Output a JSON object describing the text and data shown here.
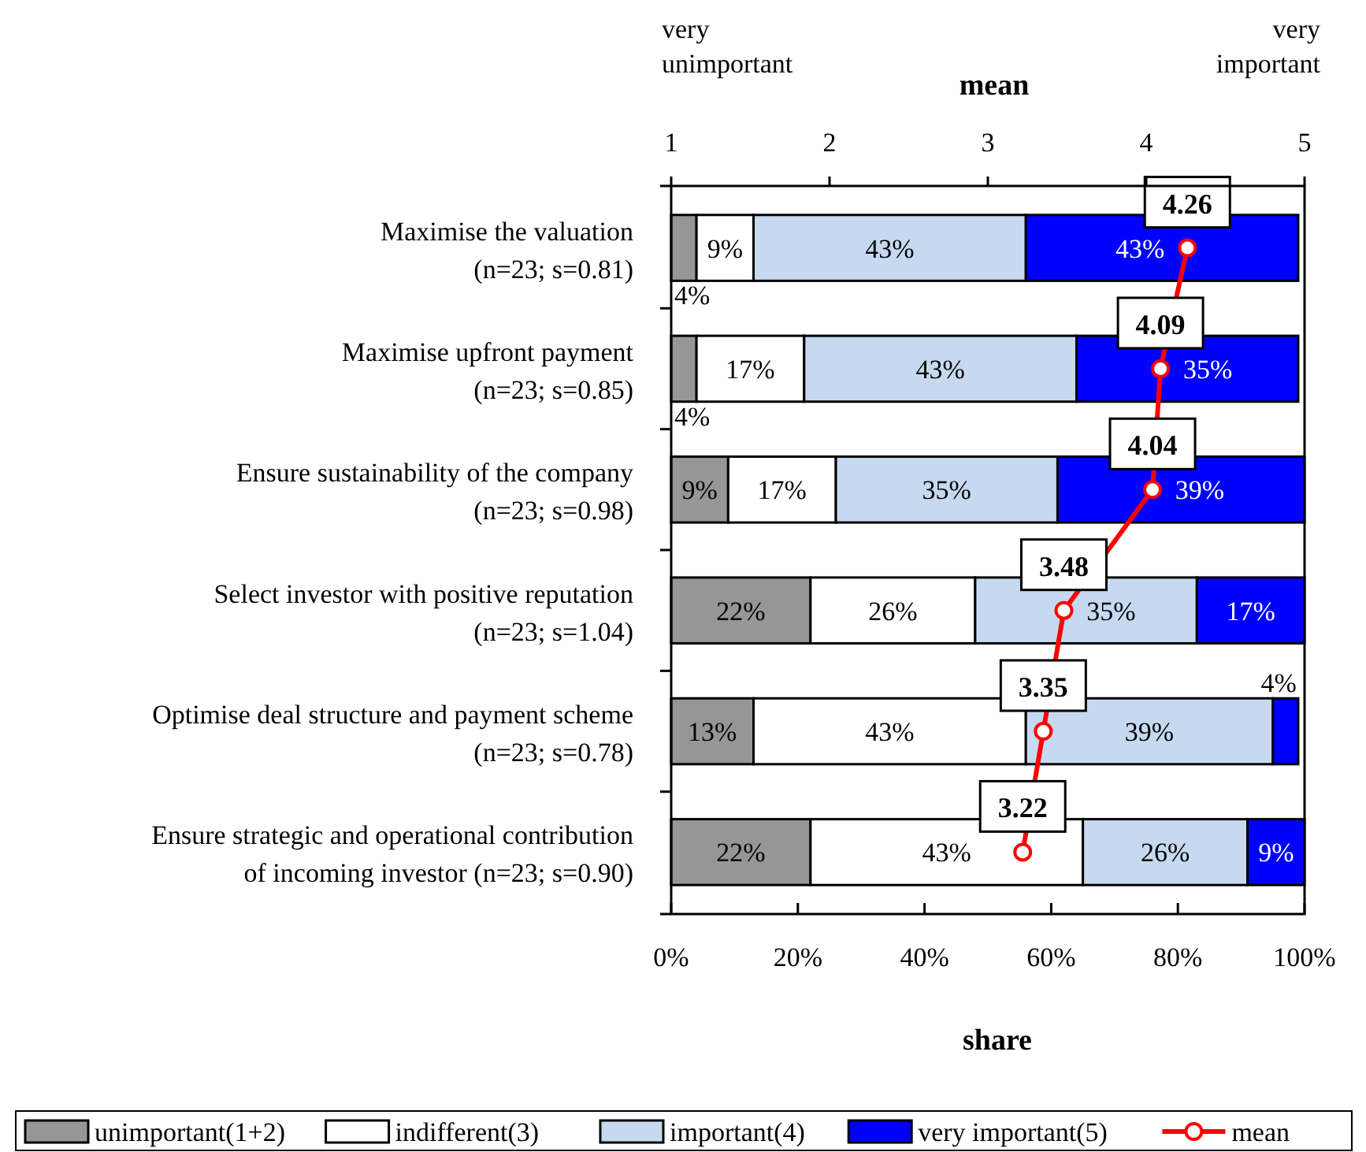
{
  "chart_data": {
    "type": "bar",
    "orientation": "horizontal",
    "stacked": true,
    "xlabel": "share",
    "x2label": "mean",
    "annotations": [
      "very\nunimportant",
      "very\nimportant"
    ],
    "categories": [
      "Maximise the valuation\n(n=23; s=0.81)",
      "Maximise upfront payment\n(n=23; s=0.85)",
      "Ensure sustainability of the company\n(n=23; s=0.98)",
      "Select investor with positive reputation\n(n=23; s=1.04)",
      "Optimise deal structure and payment scheme\n(n=23; s=0.78)",
      "Ensure strategic and operational contribution\nof incoming investor (n=23; s=0.90)"
    ],
    "series": [
      {
        "name": "unimportant(1+2)",
        "color": "#969696",
        "values": [
          4,
          4,
          9,
          22,
          13,
          22
        ],
        "value_labels": [
          "4%",
          "4%",
          "9%",
          "22%",
          "13%",
          "22%"
        ]
      },
      {
        "name": "indifferent(3)",
        "color": "#ffffff",
        "values": [
          9,
          17,
          17,
          26,
          43,
          43
        ],
        "value_labels": [
          "9%",
          "17%",
          "17%",
          "26%",
          "43%",
          "43%"
        ]
      },
      {
        "name": "important(4)",
        "color": "#c6d9f0",
        "values": [
          43,
          43,
          35,
          35,
          39,
          26
        ],
        "value_labels": [
          "43%",
          "43%",
          "35%",
          "35%",
          "39%",
          "26%"
        ]
      },
      {
        "name": "very important(5)",
        "color": "#0000ff",
        "values": [
          43,
          35,
          39,
          17,
          4,
          9
        ],
        "value_labels": [
          "43%",
          "35%",
          "39%",
          "17%",
          "4%",
          "9%"
        ]
      },
      {
        "name": "mean",
        "type": "line",
        "axis": "x2",
        "color": "#ff0000",
        "marker": "circle",
        "values": [
          4.26,
          4.09,
          4.04,
          3.48,
          3.35,
          3.22
        ],
        "value_labels": [
          "4.26",
          "4.09",
          "4.04",
          "3.48",
          "3.35",
          "3.22"
        ]
      }
    ],
    "xlim": [
      0,
      100
    ],
    "xticks": [
      {
        "value": 0,
        "label": "0%"
      },
      {
        "value": 20,
        "label": "20%"
      },
      {
        "value": 40,
        "label": "40%"
      },
      {
        "value": 60,
        "label": "60%"
      },
      {
        "value": 80,
        "label": "80%"
      },
      {
        "value": 100,
        "label": "100%"
      }
    ],
    "x2lim": [
      1,
      5
    ],
    "x2ticks": [
      1,
      2,
      3,
      4,
      5
    ],
    "legend": "bottom"
  }
}
